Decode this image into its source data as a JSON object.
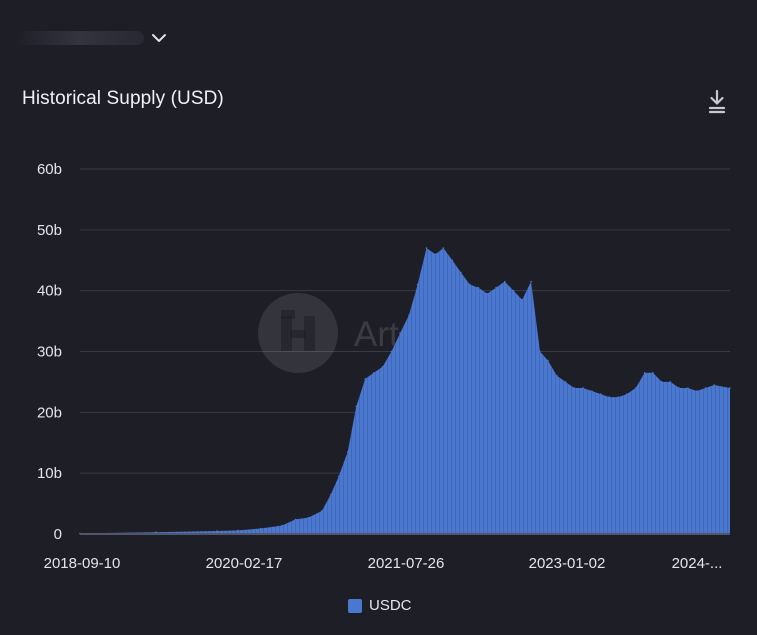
{
  "header": {
    "dropdown_icon": "chevron-down-icon",
    "download_icon": "download-icon"
  },
  "chart_data": {
    "type": "area",
    "title": "Historical Supply (USD)",
    "x_tick_labels": [
      "2018-09-10",
      "2020-02-17",
      "2021-07-26",
      "2023-01-02",
      "2024-..."
    ],
    "y_tick_labels": [
      "0",
      "10b",
      "20b",
      "30b",
      "40b",
      "50b",
      "60b"
    ],
    "ylim": [
      0,
      60
    ],
    "y_unit": "billion USD",
    "xlim": [
      "2018-09-10",
      "2024-11-25"
    ],
    "grid": true,
    "legend_position": "bottom-center",
    "watermark": "Artemis",
    "series": [
      {
        "name": "USDC",
        "color": "#4a78d1",
        "x": [
          "2018-09-10",
          "2019-06-01",
          "2020-01-01",
          "2020-03-15",
          "2020-06-01",
          "2020-08-15",
          "2020-10-01",
          "2020-11-15",
          "2021-01-01",
          "2021-02-01",
          "2021-03-01",
          "2021-04-01",
          "2021-05-01",
          "2021-06-01",
          "2021-07-01",
          "2021-08-01",
          "2021-09-01",
          "2021-10-01",
          "2021-11-01",
          "2021-12-01",
          "2022-01-01",
          "2022-02-01",
          "2022-03-01",
          "2022-04-01",
          "2022-05-01",
          "2022-06-01",
          "2022-07-01",
          "2022-08-01",
          "2022-09-01",
          "2022-10-01",
          "2022-11-01",
          "2022-12-01",
          "2023-01-01",
          "2023-02-01",
          "2023-03-01",
          "2023-04-01",
          "2023-05-01",
          "2023-06-01",
          "2023-07-01",
          "2023-08-01",
          "2023-09-01",
          "2023-10-01",
          "2023-11-01",
          "2023-12-01",
          "2024-01-01",
          "2024-02-01",
          "2024-03-01",
          "2024-04-01",
          "2024-05-01",
          "2024-06-01",
          "2024-07-01",
          "2024-08-01",
          "2024-09-01",
          "2024-10-01",
          "2024-11-25"
        ],
        "values": [
          0.1,
          0.3,
          0.5,
          0.6,
          0.9,
          1.4,
          2.4,
          2.7,
          3.8,
          6.5,
          9.5,
          13.5,
          21.0,
          25.5,
          26.5,
          27.5,
          30.0,
          33.0,
          36.0,
          41.0,
          47.0,
          46.0,
          47.0,
          45.0,
          43.0,
          41.0,
          40.5,
          39.5,
          40.5,
          41.5,
          40.0,
          38.5,
          41.5,
          30.0,
          28.5,
          26.0,
          25.0,
          24.0,
          24.0,
          23.5,
          23.0,
          22.5,
          22.5,
          23.0,
          24.0,
          26.5,
          26.5,
          25.0,
          25.0,
          24.0,
          24.0,
          23.5,
          24.0,
          24.5,
          24.0
        ]
      }
    ]
  }
}
